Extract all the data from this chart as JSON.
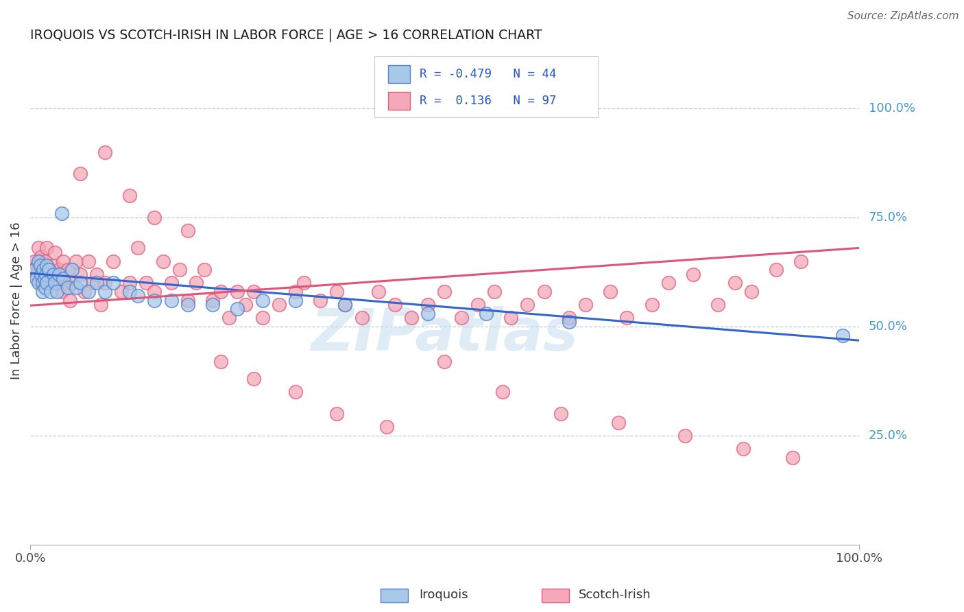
{
  "title": "IROQUOIS VS SCOTCH-IRISH IN LABOR FORCE | AGE > 16 CORRELATION CHART",
  "source": "Source: ZipAtlas.com",
  "ylabel": "In Labor Force | Age > 16",
  "iroquois_color": "#a8c8e8",
  "scotch_color": "#f4a8b8",
  "iroquois_edge_color": "#5580cc",
  "scotch_edge_color": "#e06080",
  "iroquois_line_color": "#3366cc",
  "scotch_line_color": "#dd5577",
  "legend_r_iroquois": "R = -0.479",
  "legend_n_iroquois": "N = 44",
  "legend_r_scotch": "R =  0.136",
  "legend_n_scotch": "N = 97",
  "watermark": "ZIPatlas",
  "background_color": "#ffffff",
  "grid_color": "#b8ccd8",
  "right_label_color": "#4499cc",
  "yticks": [
    0.25,
    0.5,
    0.75,
    1.0
  ],
  "ytick_labels": [
    "25.0%",
    "50.0%",
    "75.0%",
    "100.0%"
  ],
  "xlim": [
    0.0,
    1.0
  ],
  "ylim": [
    0.0,
    1.12
  ],
  "iroquois_line_x": [
    0.0,
    1.0
  ],
  "iroquois_line_y": [
    0.622,
    0.468
  ],
  "scotch_line_x": [
    0.0,
    1.0
  ],
  "scotch_line_y": [
    0.548,
    0.68
  ],
  "iroquois_x": [
    0.005,
    0.007,
    0.01,
    0.01,
    0.012,
    0.013,
    0.015,
    0.015,
    0.016,
    0.017,
    0.018,
    0.019,
    0.02,
    0.02,
    0.022,
    0.025,
    0.028,
    0.03,
    0.032,
    0.035,
    0.038,
    0.04,
    0.045,
    0.05,
    0.055,
    0.06,
    0.07,
    0.08,
    0.09,
    0.1,
    0.12,
    0.13,
    0.15,
    0.17,
    0.19,
    0.22,
    0.25,
    0.28,
    0.32,
    0.38,
    0.48,
    0.55,
    0.65,
    0.98
  ],
  "iroquois_y": [
    0.63,
    0.61,
    0.65,
    0.6,
    0.64,
    0.62,
    0.6,
    0.58,
    0.63,
    0.61,
    0.59,
    0.62,
    0.64,
    0.6,
    0.63,
    0.58,
    0.62,
    0.6,
    0.58,
    0.62,
    0.76,
    0.61,
    0.59,
    0.63,
    0.59,
    0.6,
    0.58,
    0.6,
    0.58,
    0.6,
    0.58,
    0.57,
    0.56,
    0.56,
    0.55,
    0.55,
    0.54,
    0.56,
    0.56,
    0.55,
    0.53,
    0.53,
    0.51,
    0.48
  ],
  "scotch_x": [
    0.005,
    0.007,
    0.008,
    0.01,
    0.01,
    0.012,
    0.013,
    0.015,
    0.016,
    0.018,
    0.02,
    0.022,
    0.025,
    0.028,
    0.03,
    0.033,
    0.035,
    0.038,
    0.04,
    0.042,
    0.045,
    0.048,
    0.05,
    0.055,
    0.06,
    0.065,
    0.07,
    0.075,
    0.08,
    0.085,
    0.09,
    0.1,
    0.11,
    0.12,
    0.13,
    0.14,
    0.15,
    0.16,
    0.17,
    0.18,
    0.19,
    0.2,
    0.21,
    0.22,
    0.23,
    0.24,
    0.25,
    0.26,
    0.27,
    0.28,
    0.3,
    0.32,
    0.33,
    0.35,
    0.37,
    0.38,
    0.4,
    0.42,
    0.44,
    0.46,
    0.48,
    0.5,
    0.52,
    0.54,
    0.56,
    0.58,
    0.6,
    0.62,
    0.65,
    0.67,
    0.7,
    0.72,
    0.75,
    0.77,
    0.8,
    0.83,
    0.85,
    0.87,
    0.9,
    0.93,
    0.06,
    0.09,
    0.12,
    0.15,
    0.19,
    0.23,
    0.27,
    0.32,
    0.37,
    0.43,
    0.5,
    0.57,
    0.64,
    0.71,
    0.79,
    0.86,
    0.92
  ],
  "scotch_y": [
    0.65,
    0.62,
    0.64,
    0.68,
    0.63,
    0.6,
    0.66,
    0.63,
    0.6,
    0.65,
    0.68,
    0.62,
    0.6,
    0.64,
    0.67,
    0.6,
    0.63,
    0.58,
    0.65,
    0.6,
    0.63,
    0.56,
    0.6,
    0.65,
    0.62,
    0.58,
    0.65,
    0.6,
    0.62,
    0.55,
    0.6,
    0.65,
    0.58,
    0.6,
    0.68,
    0.6,
    0.58,
    0.65,
    0.6,
    0.63,
    0.56,
    0.6,
    0.63,
    0.56,
    0.58,
    0.52,
    0.58,
    0.55,
    0.58,
    0.52,
    0.55,
    0.58,
    0.6,
    0.56,
    0.58,
    0.55,
    0.52,
    0.58,
    0.55,
    0.52,
    0.55,
    0.58,
    0.52,
    0.55,
    0.58,
    0.52,
    0.55,
    0.58,
    0.52,
    0.55,
    0.58,
    0.52,
    0.55,
    0.6,
    0.62,
    0.55,
    0.6,
    0.58,
    0.63,
    0.65,
    0.85,
    0.9,
    0.8,
    0.75,
    0.72,
    0.42,
    0.38,
    0.35,
    0.3,
    0.27,
    0.42,
    0.35,
    0.3,
    0.28,
    0.25,
    0.22,
    0.2
  ]
}
